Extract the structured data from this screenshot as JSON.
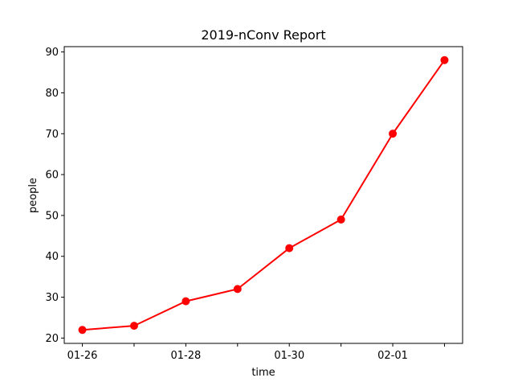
{
  "chart_data": {
    "type": "line",
    "title": "2019-nConv Report",
    "xlabel": "time",
    "ylabel": "people",
    "x": [
      "01-26",
      "01-27",
      "01-28",
      "01-29",
      "01-30",
      "01-31",
      "02-01",
      "02-02"
    ],
    "x_tick_labels": [
      "01-26",
      "",
      "01-28",
      "",
      "01-30",
      "",
      "02-01",
      ""
    ],
    "series": [
      {
        "values": [
          22,
          23,
          29,
          32,
          42,
          49,
          70,
          88
        ],
        "color": "#ff0000",
        "marker": "circle"
      }
    ],
    "ylim": [
      18.7,
      91.3
    ],
    "yticks": [
      20,
      30,
      40,
      50,
      60,
      70,
      80,
      90
    ],
    "grid": false,
    "legend": "none"
  }
}
